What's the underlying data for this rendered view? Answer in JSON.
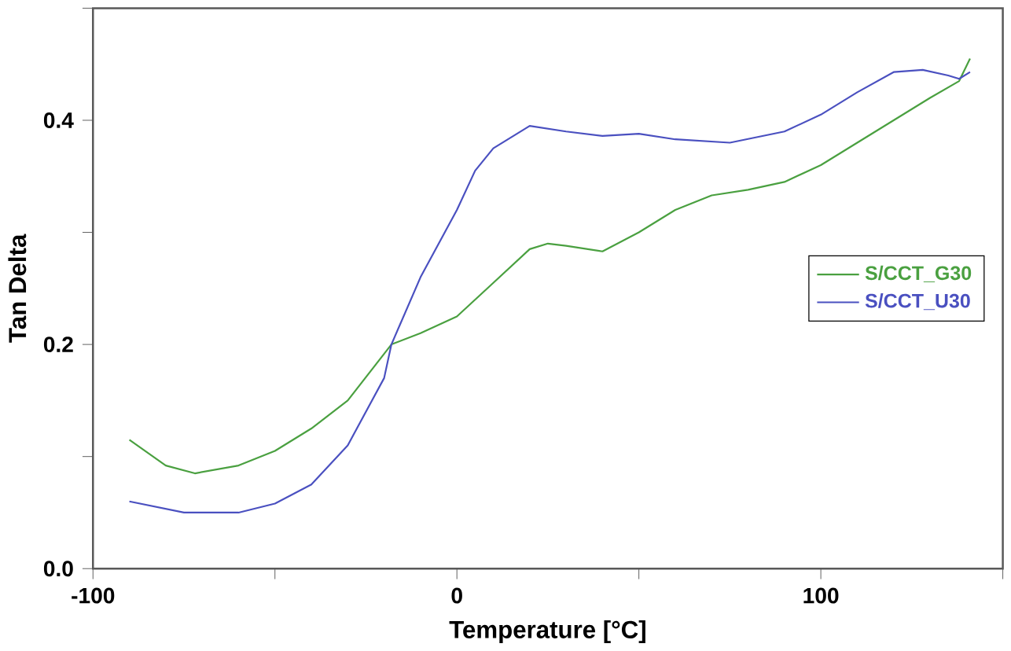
{
  "chart_data": {
    "type": "line",
    "xlabel": "Temperature [°C]",
    "ylabel": "Tan Delta",
    "xlim": [
      -100,
      150
    ],
    "ylim": [
      0,
      0.5
    ],
    "xticks": [
      -100,
      {
        "value": -50,
        "label": null
      },
      0,
      {
        "value": 50,
        "label": null
      },
      100,
      {
        "value": 150,
        "label": null
      }
    ],
    "yticks": [
      {
        "value": 0,
        "label": "0.0"
      },
      {
        "value": 0.1,
        "label": null
      },
      0.2,
      {
        "value": 0.3,
        "label": null
      },
      0.4,
      {
        "value": 0.5,
        "label": null
      }
    ],
    "legend": "right",
    "grid": false,
    "marker": "none",
    "line_style": "solid",
    "series": [
      {
        "name": "S/CCT_G30",
        "color": "#4aa040",
        "x": [
          -90,
          -80,
          -72,
          -60,
          -50,
          -40,
          -30,
          -18,
          -10,
          0,
          10,
          20,
          25,
          30,
          40,
          50,
          60,
          70,
          80,
          90,
          100,
          110,
          120,
          130,
          138,
          141
        ],
        "values": [
          0.115,
          0.092,
          0.085,
          0.092,
          0.105,
          0.125,
          0.15,
          0.2,
          0.21,
          0.225,
          0.255,
          0.285,
          0.29,
          0.288,
          0.283,
          0.3,
          0.32,
          0.333,
          0.338,
          0.345,
          0.36,
          0.38,
          0.4,
          0.42,
          0.435,
          0.455
        ]
      },
      {
        "name": "S/CCT_U30",
        "color": "#4a50c0",
        "x": [
          -90,
          -75,
          -60,
          -50,
          -40,
          -30,
          -20,
          -18,
          -10,
          0,
          5,
          10,
          20,
          30,
          40,
          50,
          60,
          75,
          90,
          100,
          110,
          120,
          128,
          135,
          138,
          141
        ],
        "values": [
          0.06,
          0.05,
          0.05,
          0.058,
          0.075,
          0.11,
          0.17,
          0.2,
          0.26,
          0.32,
          0.355,
          0.375,
          0.395,
          0.39,
          0.386,
          0.388,
          0.383,
          0.38,
          0.39,
          0.405,
          0.425,
          0.443,
          0.445,
          0.44,
          0.437,
          0.443
        ]
      }
    ]
  }
}
